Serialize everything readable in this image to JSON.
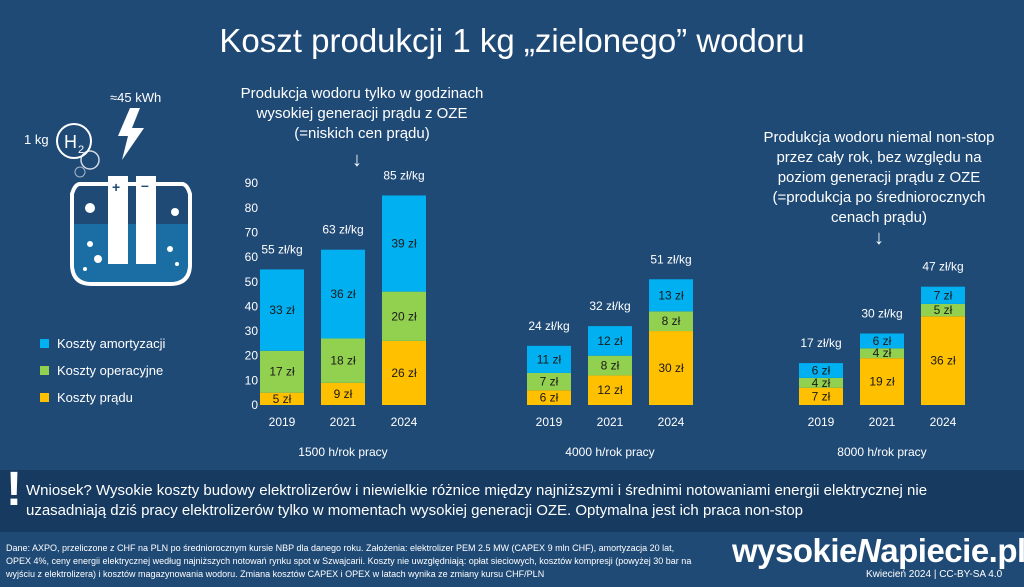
{
  "title": "Koszt produkcji 1 kg „zielonego” wodoru",
  "annotation_left": [
    "Produkcja wodoru tylko w godzinach",
    "wysokiej generacji prądu z OZE",
    "(=niskich cen prądu)"
  ],
  "annotation_right": [
    "Produkcja wodoru niemal non-stop",
    "przez cały rok, bez względu na",
    "poziom generacji prądu z OZE",
    "(=produkcja po średniorocznych",
    "cenach prądu)"
  ],
  "illustration": {
    "energy_label": "≈45 kWh",
    "mass_label": "1 kg",
    "molecule_label": "H",
    "molecule_subscript": "2",
    "icon": "electrolyzer-icon"
  },
  "conclusion_mark": "!",
  "conclusion": "Wniosek? Wysokie koszty budowy elektrolizerów i niewielkie różnice między najniższymi i średnimi notowaniami energii elektrycznej nie uzasadniają dziś pracy elektrolizerów tylko w momentach wysokiej generacji OZE. Optymalna jest ich praca non-stop",
  "notes": "Dane: AXPO, przeliczone z CHF na PLN po średniorocznym kursie NBP dla danego roku. Założenia: elektrolizer PEM 2.5 MW (CAPEX 9 mln CHF), amortyzacja 20 lat, OPEX 4%, ceny energii elektrycznej według najniższych notowań rynku spot w Szwajcarii. Koszty nie uwzględniają: opłat sieciowych, kosztów kompresji (powyżej 30 bar na wyjściu z elektrolizera) i kosztów magazynowania wodoru. Zmiana kosztów CAPEX i OPEX w latach wynika ze zmiany kursu CHF/PLN",
  "brand": {
    "prefix": "wysokie",
    "mark": "N",
    "suffix": "apiecie.pl"
  },
  "date": "Kwiecień 2024  |  CC-BY-SA 4.0",
  "colors": {
    "background": "#1f4a76",
    "amortization": "#00b0f0",
    "operational": "#92d050",
    "electricity": "#ffc000"
  },
  "chart_data": {
    "type": "bar",
    "stacked": true,
    "ylim": [
      0,
      90
    ],
    "yticks": [
      0,
      10,
      20,
      30,
      40,
      50,
      60,
      70,
      80,
      90
    ],
    "grid": false,
    "legend_position": "left",
    "series": [
      {
        "name": "Koszty amortyzacji",
        "color": "#00b0f0"
      },
      {
        "name": "Koszty operacyjne",
        "color": "#92d050"
      },
      {
        "name": "Koszty prądu",
        "color": "#ffc000"
      }
    ],
    "groups": [
      {
        "label": "1500 h/rok pracy",
        "bars": [
          {
            "year": "2019",
            "total": "55 zł/kg",
            "electricity": 5,
            "operational": 17,
            "amortization": 33
          },
          {
            "year": "2021",
            "total": "63 zł/kg",
            "electricity": 9,
            "operational": 18,
            "amortization": 36
          },
          {
            "year": "2024",
            "total": "85 zł/kg",
            "electricity": 26,
            "operational": 20,
            "amortization": 39
          }
        ]
      },
      {
        "label": "4000 h/rok pracy",
        "bars": [
          {
            "year": "2019",
            "total": "24 zł/kg",
            "electricity": 6,
            "operational": 7,
            "amortization": 11
          },
          {
            "year": "2021",
            "total": "32 zł/kg",
            "electricity": 12,
            "operational": 8,
            "amortization": 12
          },
          {
            "year": "2024",
            "total": "51 zł/kg",
            "electricity": 30,
            "operational": 8,
            "amortization": 13
          }
        ]
      },
      {
        "label": "8000 h/rok pracy",
        "bars": [
          {
            "year": "2019",
            "total": "17 zł/kg",
            "electricity": 7,
            "operational": 4,
            "amortization": 6
          },
          {
            "year": "2021",
            "total": "30 zł/kg",
            "electricity": 19,
            "operational": 4,
            "amortization": 6
          },
          {
            "year": "2024",
            "total": "47 zł/kg",
            "electricity": 36,
            "operational": 5,
            "amortization": 7
          }
        ]
      }
    ],
    "value_suffix": " zł"
  }
}
